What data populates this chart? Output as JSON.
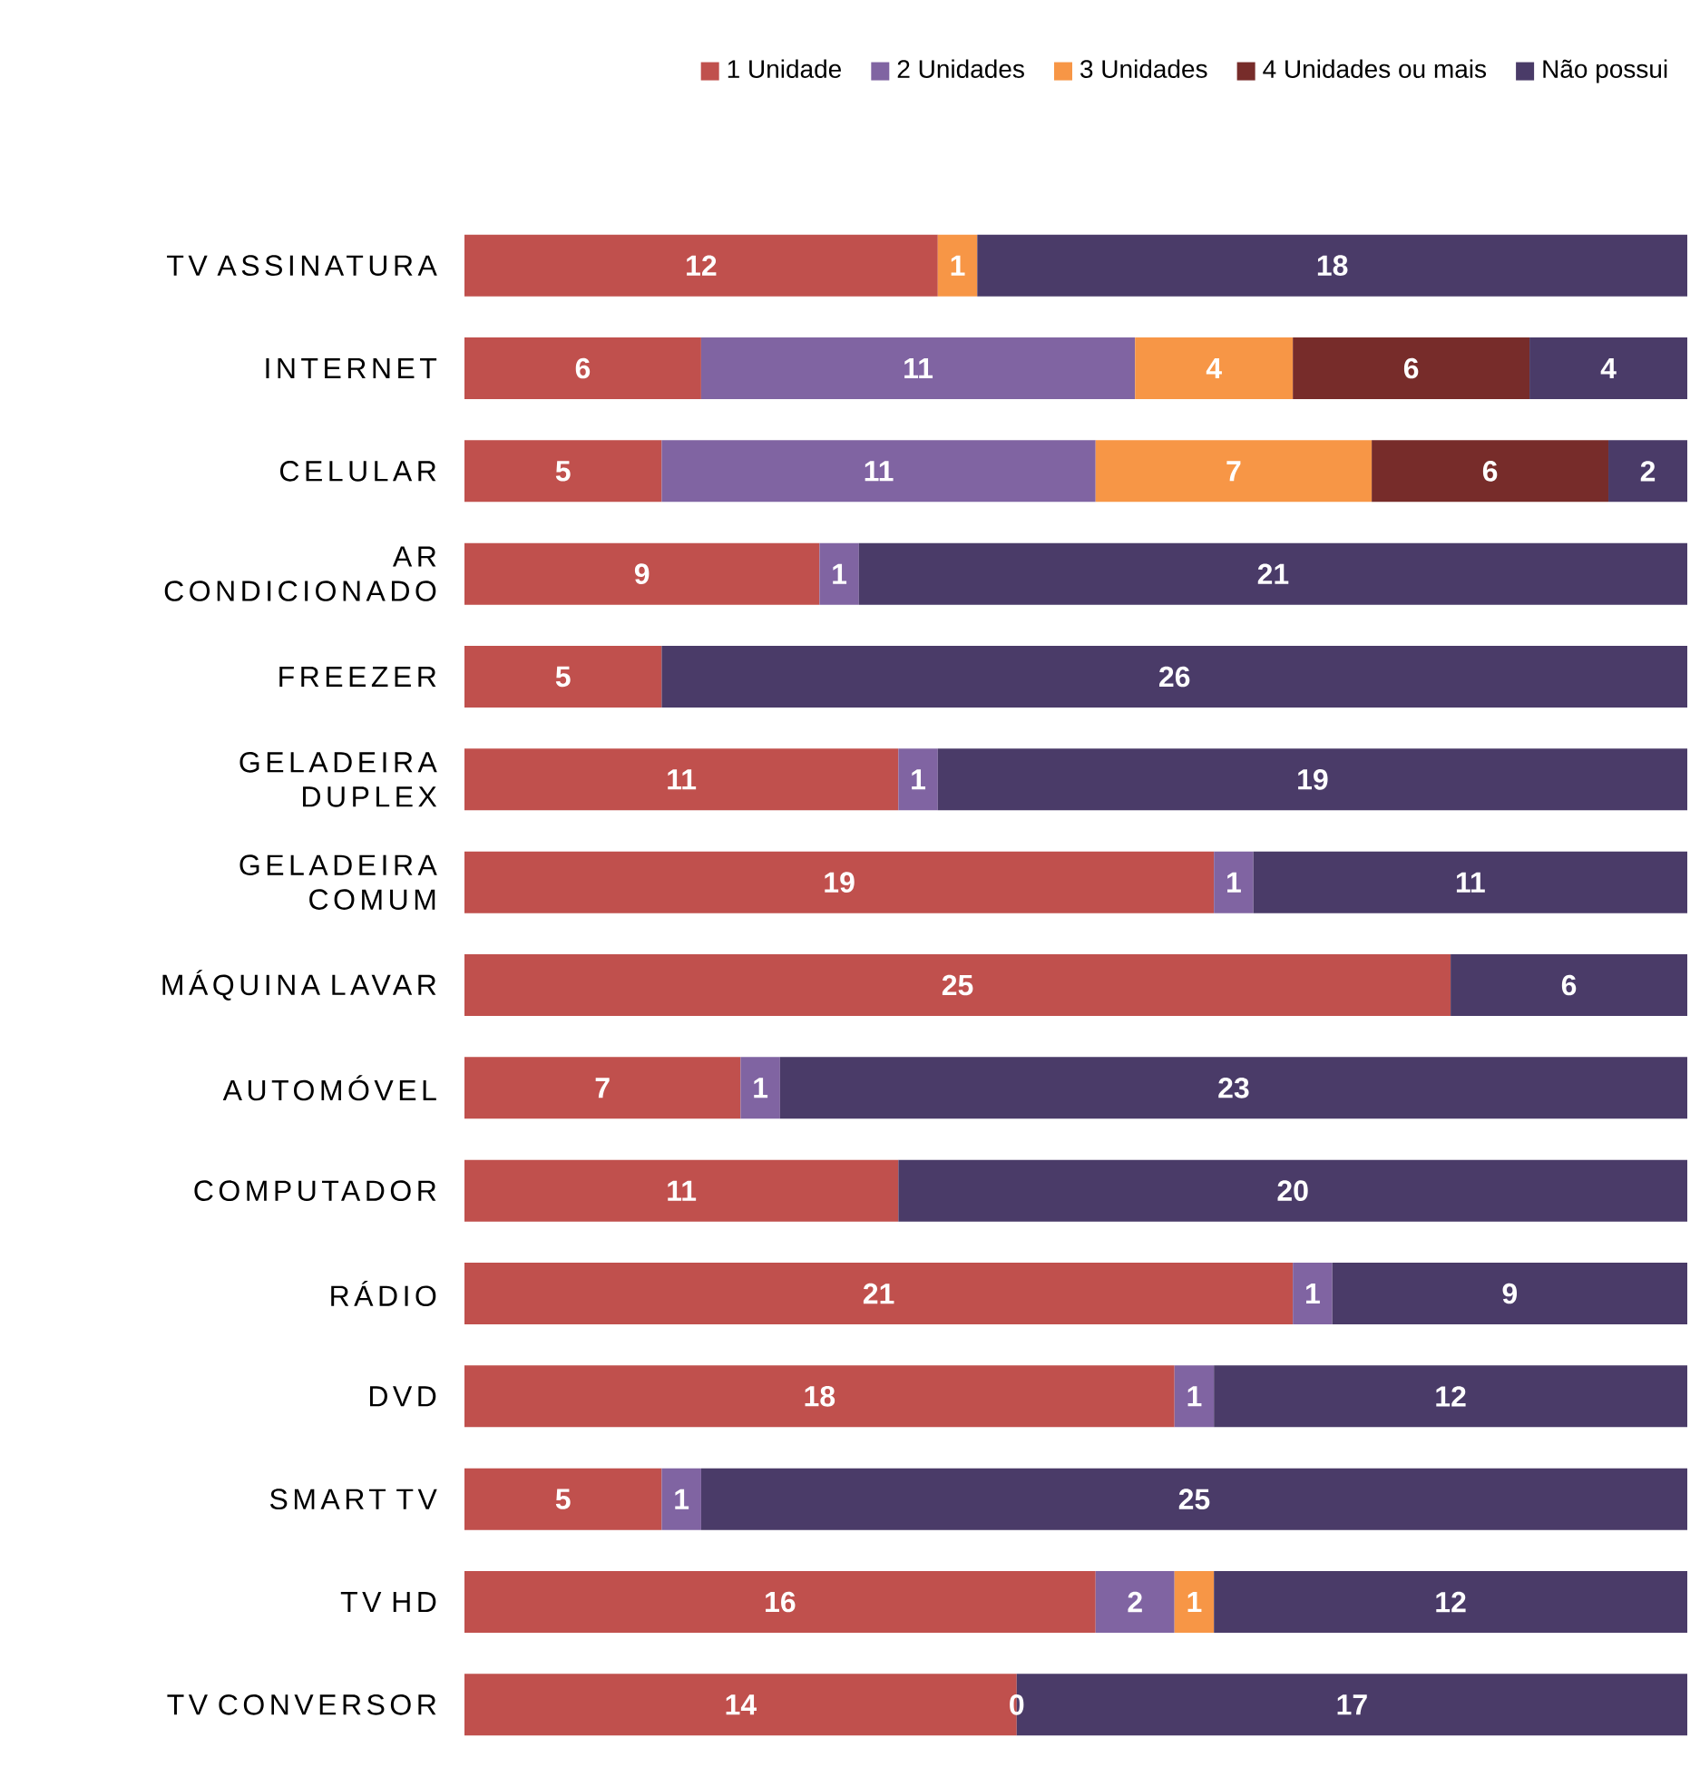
{
  "chart_data": {
    "type": "bar",
    "orientation": "horizontal",
    "stacked": true,
    "data_labels": true,
    "legend": "top right",
    "tick_labels": "y",
    "annotations": [
      {
        "text": "0",
        "x": 14,
        "y": "TV CONVERSOR"
      }
    ],
    "categories": [
      "TV ASSINATURA",
      "INTERNET",
      "CELULAR",
      "AR CONDICIONADO",
      "FREEZER",
      "GELADEIRA DUPLEX",
      "GELADEIRA COMUM",
      "MÁQUINA LAVAR",
      "AUTOMÓVEL",
      "COMPUTADOR",
      "RÁDIO",
      "DVD",
      "SMART TV",
      "TV HD",
      "TV CONVERSOR"
    ],
    "series": [
      {
        "name": "1 Unidade",
        "color": "#c0504d",
        "values": [
          12,
          6,
          5,
          9,
          5,
          11,
          19,
          25,
          7,
          11,
          21,
          18,
          5,
          16,
          14
        ]
      },
      {
        "name": "2 Unidades",
        "color": "#8064a2",
        "values": [
          null,
          11,
          11,
          1,
          null,
          1,
          1,
          null,
          1,
          null,
          1,
          1,
          1,
          2,
          null
        ]
      },
      {
        "name": "3 Unidades",
        "color": "#f79646",
        "values": [
          1,
          4,
          7,
          null,
          null,
          null,
          null,
          null,
          null,
          null,
          null,
          null,
          null,
          1,
          null
        ]
      },
      {
        "name": "4 Unidades ou mais",
        "color": "#772c2a",
        "values": [
          null,
          6,
          6,
          null,
          null,
          null,
          null,
          null,
          null,
          null,
          null,
          null,
          null,
          null,
          null
        ]
      },
      {
        "name": "Não possui",
        "color": "#4a3b68",
        "values": [
          18,
          4,
          2,
          21,
          26,
          19,
          11,
          6,
          23,
          20,
          9,
          12,
          25,
          12,
          17
        ]
      }
    ]
  }
}
